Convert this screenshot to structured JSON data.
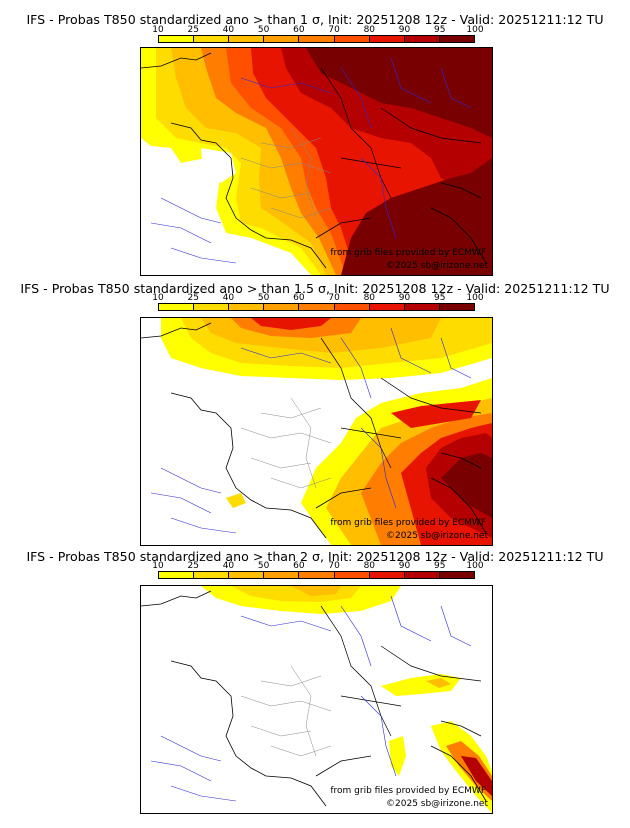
{
  "colorbar": {
    "ticks": [
      "10",
      "25",
      "40",
      "50",
      "60",
      "70",
      "80",
      "90",
      "95",
      "100"
    ],
    "colors": [
      "#ffff00",
      "#ffdc00",
      "#ffbe00",
      "#ffa000",
      "#ff7d00",
      "#ff5000",
      "#e61400",
      "#b40000",
      "#780000"
    ]
  },
  "panels": [
    {
      "title": "IFS - Probas T850  standardized ano > than 1 σ, Init: 20251208 12z - Valid: 20251211:12 TU",
      "credit_source": "from grib files provided by ECMWF",
      "credit_copyright": "©2025 sb@irizone.net"
    },
    {
      "title": "IFS - Probas T850  standardized ano > than 1.5 σ, Init: 20251208 12z - Valid: 20251211:12 TU",
      "credit_source": "from grib files provided by ECMWF",
      "credit_copyright": "©2025 sb@irizone.net"
    },
    {
      "title": "IFS - Probas T850  standardized ano > than 2 σ, Init: 20251208 12z - Valid: 20251211:12 TU",
      "credit_source": "from grib files provided by ECMWF",
      "credit_copyright": "©2025 sb@irizone.net"
    }
  ]
}
